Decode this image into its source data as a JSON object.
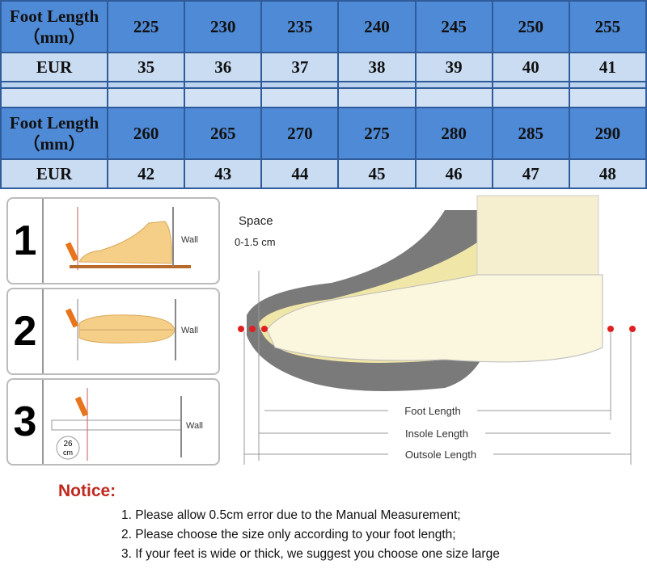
{
  "size_table": {
    "blocks": [
      {
        "header_label_line1": "Foot Length",
        "header_label_line2": "（mm）",
        "foot_length": [
          "225",
          "230",
          "235",
          "240",
          "245",
          "250",
          "255"
        ],
        "eur_label": "EUR",
        "eur": [
          "35",
          "36",
          "37",
          "38",
          "39",
          "40",
          "41"
        ]
      },
      {
        "header_label_line1": "Foot Length",
        "header_label_line2": "（mm）",
        "foot_length": [
          "260",
          "265",
          "270",
          "275",
          "280",
          "285",
          "290"
        ],
        "eur_label": "EUR",
        "eur": [
          "42",
          "43",
          "44",
          "45",
          "46",
          "47",
          "48"
        ]
      }
    ],
    "colors": {
      "header": "#4f8ad6",
      "row": "#c9dcf2",
      "border": "#2f5b9a"
    }
  },
  "steps": [
    {
      "number": "1",
      "wall_label": "Wall"
    },
    {
      "number": "2",
      "wall_label": "Wall"
    },
    {
      "number": "3",
      "wall_label": "Wall",
      "ruler_reading": "26",
      "ruler_unit": "cm"
    }
  ],
  "diagram": {
    "space_label": "Space",
    "space_value": "0-1.5 cm",
    "foot_length_label": "Foot Length",
    "insole_length_label": "Insole Length",
    "outsole_length_label": "Outsole Length"
  },
  "notice": {
    "title": "Notice:",
    "lines": [
      "1. Please allow 0.5cm error due to the Manual Measurement;",
      "2. Please choose the size only according to your foot length;",
      "3. If your feet is wide or thick, we suggest you choose one size large"
    ],
    "title_color": "#c0281e"
  }
}
